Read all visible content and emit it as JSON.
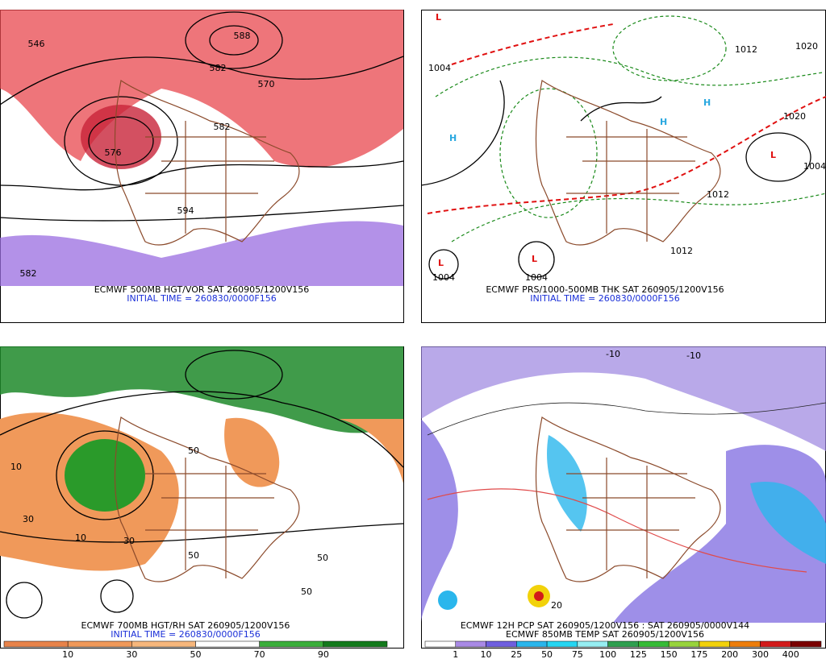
{
  "panels": [
    {
      "caption": "ECMWF 500MB HGT/VOR SAT 260905/1200V156",
      "initial": "INITIAL TIME = 260830/0000F156",
      "contour_labels": [
        "546",
        "588",
        "582",
        "570",
        "594",
        "582",
        "576",
        "582"
      ]
    },
    {
      "caption": "ECMWF PRS/1000-500MB THK SAT 260905/1200V156",
      "initial": "INITIAL TIME = 260830/0000F156",
      "contour_labels": [
        "1004",
        "1020",
        "1012",
        "1004",
        "1012",
        "1020",
        "1004",
        "1004",
        "1012"
      ]
    },
    {
      "caption": "ECMWF 700MB HGT/RH SAT 260905/1200V156",
      "initial": "INITIAL TIME = 260830/0000F156",
      "contour_labels": [
        "10",
        "50",
        "30",
        "10",
        "50",
        "50",
        "50",
        "30"
      ]
    },
    {
      "caption": "ECMWF 12H PCP SAT 260905/1200V156 : SAT 260905/0000V144",
      "initial": "ECMWF 850MB TEMP SAT 260905/1200V156",
      "contour_labels": [
        "-10",
        "-10",
        "20"
      ]
    }
  ],
  "colorbars": [
    {
      "labels": [
        "10",
        "30",
        "50",
        "70",
        "90"
      ],
      "colors": [
        "#e8834a",
        "#f0995a",
        "#f7b77c",
        "#ffffff",
        "#3aae3a",
        "#137a1c"
      ]
    },
    {
      "labels": [
        "1",
        "10",
        "25",
        "50",
        "75",
        "100",
        "125",
        "150",
        "175",
        "200",
        "300",
        "400"
      ],
      "colors": [
        "#ffffff",
        "#a98ae6",
        "#6f5fe0",
        "#2ab6ec",
        "#25d6f2",
        "#96eef2",
        "#2f9f4f",
        "#36bb36",
        "#98d43c",
        "#f2d20a",
        "#ee7d0a",
        "#d21a1a",
        "#7a0000"
      ]
    }
  ]
}
